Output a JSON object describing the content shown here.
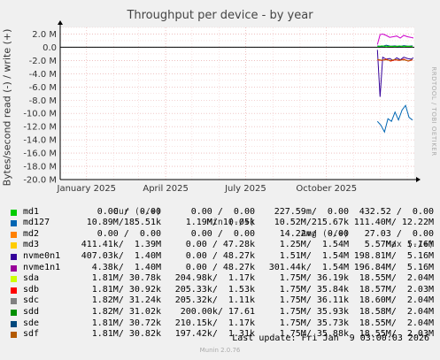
{
  "chart_data": {
    "type": "line",
    "title": "Throughput per device - by year",
    "ylabel": "Bytes/second read (-) / write (+)",
    "ylim": [
      -20000000,
      3000000
    ],
    "yticks": [
      "2.0 M",
      "0.0",
      "-2.0 M",
      "-4.0 M",
      "-6.0 M",
      "-8.0 M",
      "-10.0 M",
      "-12.0 M",
      "-14.0 M",
      "-16.0 M",
      "-18.0 M",
      "-20.0 M"
    ],
    "ytick_values": [
      2000000,
      0,
      -2000000,
      -4000000,
      -6000000,
      -8000000,
      -10000000,
      -12000000,
      -14000000,
      -16000000,
      -18000000,
      -20000000
    ],
    "xtick_labels": [
      "January 2025",
      "April 2025",
      "July 2025",
      "October 2025"
    ],
    "xrange": [
      "2024-12-02",
      "2026-01-09"
    ],
    "xticks_dates": [
      "2025-01-01",
      "2025-04-01",
      "2025-07-01",
      "2025-10-01"
    ],
    "grid": true,
    "series": [
      {
        "name": "md127",
        "color": "#0066b3",
        "x": [
          "2025-11-28",
          "2025-12-02",
          "2025-12-06",
          "2025-12-10",
          "2025-12-14",
          "2025-12-18",
          "2025-12-22",
          "2025-12-26",
          "2025-12-30",
          "2026-01-03",
          "2026-01-07"
        ],
        "y": [
          -11200000,
          -11800000,
          -12800000,
          -10800000,
          -11200000,
          -9800000,
          -11000000,
          -9500000,
          -8800000,
          -10600000,
          -11000000
        ]
      },
      {
        "name": "nvme1n1",
        "color": "#cc00cc",
        "x": [
          "2025-11-28",
          "2025-12-01",
          "2025-12-04",
          "2025-12-08",
          "2025-12-12",
          "2025-12-16",
          "2025-12-20",
          "2025-12-24",
          "2025-12-28",
          "2026-01-01",
          "2026-01-05",
          "2026-01-08"
        ],
        "y": [
          400000,
          1900000,
          2000000,
          1800000,
          1500000,
          1600000,
          1700000,
          1400000,
          1800000,
          1600000,
          1500000,
          1400000
        ]
      },
      {
        "name": "nvme0n1",
        "color": "#330099",
        "x": [
          "2025-11-28",
          "2025-12-01",
          "2025-12-04",
          "2025-12-08",
          "2025-12-12",
          "2025-12-16",
          "2025-12-20",
          "2025-12-24",
          "2025-12-28",
          "2026-01-01",
          "2026-01-05",
          "2026-01-08"
        ],
        "y": [
          -400000,
          -7500000,
          -1500000,
          -1800000,
          -1700000,
          -2000000,
          -1600000,
          -1900000,
          -1500000,
          -1700000,
          -1800000,
          -1600000
        ]
      },
      {
        "name": "sdb",
        "color": "#ff0000",
        "x": [
          "2025-11-28",
          "2025-12-03",
          "2025-12-08",
          "2025-12-13",
          "2025-12-18",
          "2025-12-23",
          "2025-12-28",
          "2026-01-02",
          "2026-01-07"
        ],
        "y": [
          -1900000,
          -2000000,
          -1800000,
          -2100000,
          -1900000,
          -2000000,
          -1800000,
          -2100000,
          -1900000
        ]
      },
      {
        "name": "sdf",
        "color": "#b35a00",
        "x": [
          "2025-11-28",
          "2025-12-03",
          "2025-12-08",
          "2025-12-13",
          "2025-12-18",
          "2025-12-23",
          "2025-12-28",
          "2026-01-02",
          "2026-01-07"
        ],
        "y": [
          -1850000,
          -1950000,
          -1900000,
          -2000000,
          -1850000,
          -1950000,
          -1900000,
          -2050000,
          -1850000
        ]
      },
      {
        "name": "sde",
        "color": "#005a73",
        "x": [
          "2025-11-28",
          "2025-12-03",
          "2025-12-08",
          "2025-12-13",
          "2025-12-18",
          "2025-12-23",
          "2025-12-28",
          "2026-01-02",
          "2026-01-07"
        ],
        "y": [
          200000,
          100000,
          300000,
          150000,
          200000,
          100000,
          250000,
          150000,
          200000
        ]
      },
      {
        "name": "sdd",
        "color": "#00cc00",
        "x": [
          "2025-11-28",
          "2025-12-03",
          "2025-12-08",
          "2025-12-13",
          "2025-12-18",
          "2025-12-23",
          "2025-12-28",
          "2026-01-02",
          "2026-01-07"
        ],
        "y": [
          100000,
          200000,
          100000,
          150000,
          100000,
          200000,
          100000,
          150000,
          100000
        ]
      }
    ],
    "legend": {
      "headers": [
        "Cur (-/+)",
        "Min (-/+)",
        "Avg (-/+)",
        "Max (-/+)"
      ],
      "rows": [
        {
          "name": "md1",
          "color": "#00cc00",
          "cur": "0.00 /  0.00",
          "min": "0.00 /  0.00",
          "avg": "227.59m/  0.00",
          "max": "432.52 /  0.00"
        },
        {
          "name": "md127",
          "color": "#0066b3",
          "cur": "10.89M/185.51k",
          "min": "1.19M/ 10.05k",
          "avg": "10.52M/215.67k",
          "max": "111.40M/ 12.22M"
        },
        {
          "name": "md2",
          "color": "#ff8000",
          "cur": "0.00 /  0.00",
          "min": "0.00 /  0.00",
          "avg": "14.22m/  0.00",
          "max": "27.03 /  0.00"
        },
        {
          "name": "md3",
          "color": "#ffcc00",
          "cur": "411.41k/  1.39M",
          "min": "0.00 / 47.28k",
          "avg": "1.25M/  1.54M",
          "max": "5.57M/  5.16M"
        },
        {
          "name": "nvme0n1",
          "color": "#330099",
          "cur": "407.03k/  1.40M",
          "min": "0.00 / 48.27k",
          "avg": "1.51M/  1.54M",
          "max": "198.81M/  5.16M"
        },
        {
          "name": "nvme1n1",
          "color": "#990099",
          "cur": "4.38k/  1.40M",
          "min": "0.00 / 48.27k",
          "avg": "301.44k/  1.54M",
          "max": "196.84M/  5.16M"
        },
        {
          "name": "sda",
          "color": "#ccff00",
          "cur": "1.81M/ 30.78k",
          "min": "204.98k/  1.17k",
          "avg": "1.75M/ 36.19k",
          "max": "18.55M/  2.04M"
        },
        {
          "name": "sdb",
          "color": "#ff0000",
          "cur": "1.81M/ 30.92k",
          "min": "205.33k/  1.53k",
          "avg": "1.75M/ 35.84k",
          "max": "18.57M/  2.03M"
        },
        {
          "name": "sdc",
          "color": "#808080",
          "cur": "1.82M/ 31.24k",
          "min": "205.32k/  1.11k",
          "avg": "1.75M/ 36.11k",
          "max": "18.60M/  2.04M"
        },
        {
          "name": "sdd",
          "color": "#008f00",
          "cur": "1.82M/ 31.02k",
          "min": "200.00k/ 17.61",
          "avg": "1.75M/ 35.93k",
          "max": "18.58M/  2.04M"
        },
        {
          "name": "sde",
          "color": "#00487d",
          "cur": "1.81M/ 30.72k",
          "min": "210.15k/  1.17k",
          "avg": "1.75M/ 35.73k",
          "max": "18.55M/  2.04M"
        },
        {
          "name": "sdf",
          "color": "#b35a00",
          "cur": "1.81M/ 30.82k",
          "min": "197.42k/  1.31k",
          "avg": "1.75M/ 35.88k",
          "max": "18.55M/  2.03M"
        }
      ]
    }
  },
  "side_label": "RRDTOOL / TOBI OETIKER",
  "last_update": "Last update: Fri Jan  9 03:00:03 2026",
  "munin_version": "Munin 2.0.76"
}
